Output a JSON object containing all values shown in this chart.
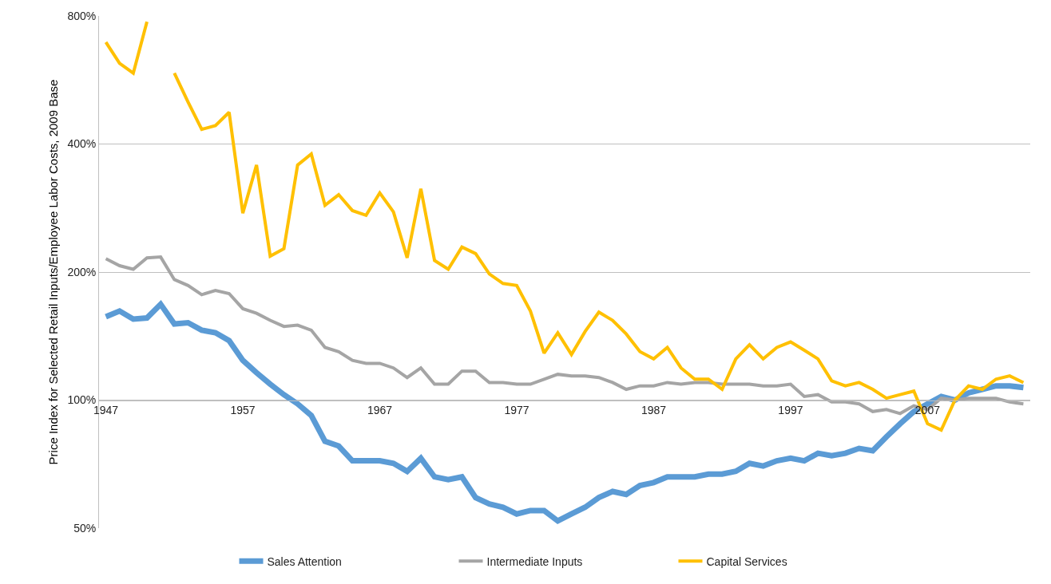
{
  "chart_data": {
    "type": "line",
    "ylabel": "Price Index for Selected Retail Inputs/Employee Labor Costs, 2009 Base",
    "x": [
      1947,
      1948,
      1949,
      1950,
      1951,
      1952,
      1953,
      1954,
      1955,
      1956,
      1957,
      1958,
      1959,
      1960,
      1961,
      1962,
      1963,
      1964,
      1965,
      1966,
      1967,
      1968,
      1969,
      1970,
      1971,
      1972,
      1973,
      1974,
      1975,
      1976,
      1977,
      1978,
      1979,
      1980,
      1981,
      1982,
      1983,
      1984,
      1985,
      1986,
      1987,
      1988,
      1989,
      1990,
      1991,
      1992,
      1993,
      1994,
      1995,
      1996,
      1997,
      1998,
      1999,
      2000,
      2001,
      2002,
      2003,
      2004,
      2005,
      2006,
      2007,
      2008,
      2009,
      2010,
      2011,
      2012,
      2013,
      2014
    ],
    "series": [
      {
        "name": "Sales Attention",
        "color": "#5b9bd5",
        "values": [
          157,
          162,
          155,
          156,
          168,
          151,
          152,
          146,
          144,
          138,
          124,
          116,
          109,
          103,
          98,
          92,
          80,
          78,
          72,
          72,
          72,
          71,
          68,
          73,
          66,
          65,
          66,
          59,
          57,
          56,
          54,
          55,
          55,
          52,
          54,
          56,
          59,
          61,
          60,
          63,
          64,
          66,
          66,
          66,
          67,
          67,
          68,
          71,
          70,
          72,
          73,
          72,
          75,
          74,
          75,
          77,
          76,
          82,
          88,
          94,
          98,
          102,
          100,
          104,
          106,
          108,
          108,
          107
        ]
      },
      {
        "name": "Intermediate Inputs",
        "color": "#a5a5a5",
        "values": [
          215,
          207,
          203,
          216,
          217,
          192,
          186,
          177,
          181,
          178,
          164,
          160,
          154,
          149,
          150,
          146,
          133,
          130,
          124,
          122,
          122,
          119,
          113,
          119,
          109,
          109,
          117,
          117,
          110,
          110,
          109,
          109,
          112,
          115,
          114,
          114,
          113,
          110,
          106,
          108,
          108,
          110,
          109,
          110,
          110,
          109,
          109,
          109,
          108,
          108,
          109,
          102,
          103,
          99,
          99,
          98,
          94,
          95,
          93,
          97,
          95,
          101,
          100,
          101,
          101,
          101,
          99,
          98
        ]
      },
      {
        "name": "Capital Services",
        "color": "#ffc000",
        "values": [
          694,
          619,
          587,
          775,
          null,
          587,
          502,
          433,
          442,
          475,
          275,
          357,
          218,
          227,
          357,
          379,
          287,
          304,
          279,
          272,
          307,
          277,
          216,
          314,
          213,
          203,
          229,
          221,
          198,
          188,
          186,
          162,
          129,
          144,
          128,
          145,
          161,
          154,
          143,
          130,
          125,
          133,
          119,
          112,
          112,
          106,
          125,
          135,
          125,
          133,
          137,
          131,
          125,
          111,
          108,
          110,
          106,
          101,
          103,
          105,
          88,
          85,
          100,
          108,
          106,
          112,
          114,
          110
        ]
      }
    ],
    "log": "y",
    "xlim": [
      1946.5,
      2014.5
    ],
    "xticks": [
      1947,
      1957,
      1967,
      1977,
      1987,
      1997,
      2007
    ],
    "ylim": [
      50,
      800
    ],
    "yticks": [
      {
        "value": 50,
        "label": "50%"
      },
      {
        "value": 100,
        "label": "100%"
      },
      {
        "value": 200,
        "label": "200%"
      },
      {
        "value": 400,
        "label": "400%"
      },
      {
        "value": 800,
        "label": "800%"
      }
    ],
    "grid": "y",
    "legend": "bottom",
    "marker": "none",
    "line_style": "solid"
  }
}
